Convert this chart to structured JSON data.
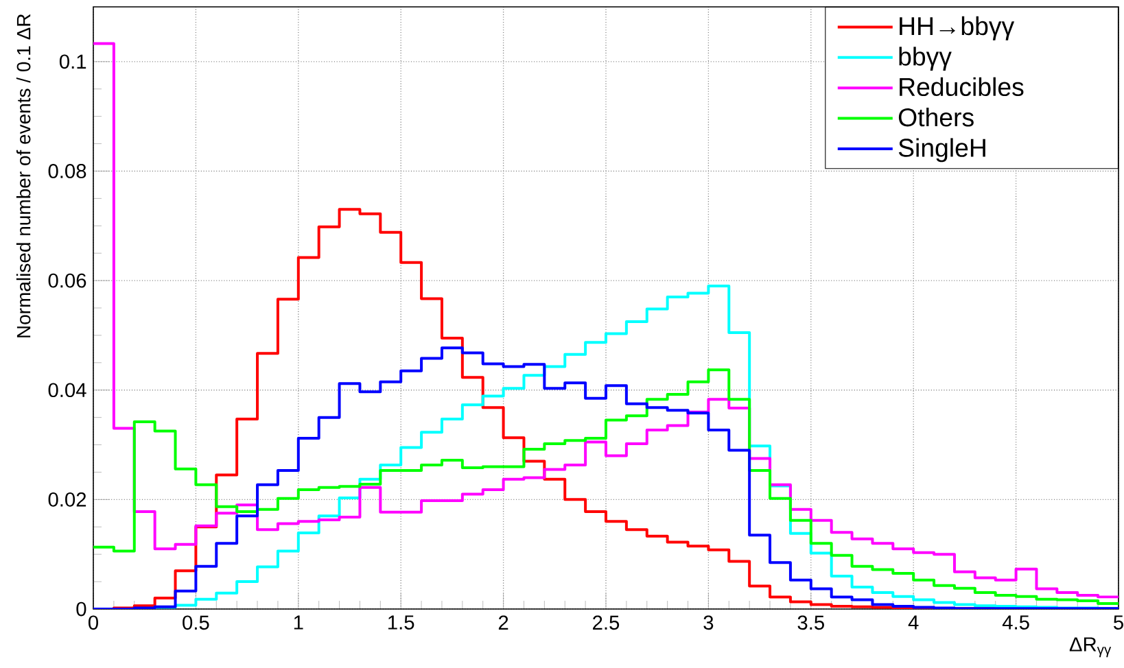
{
  "chart_data": {
    "type": "histogram",
    "xlabel": "ΔR$_{γγ}$",
    "ylabel": "Normalised number of events / 0.1 ΔR",
    "bins": [
      0,
      0.1,
      0.2,
      0.3,
      0.4,
      0.5,
      0.6,
      0.7,
      0.8,
      0.9,
      1.0,
      1.1,
      1.2,
      1.3,
      1.4,
      1.5,
      1.6,
      1.7,
      1.8,
      1.9,
      2.0,
      2.1,
      2.2,
      2.3,
      2.4,
      2.5,
      2.6,
      2.7,
      2.8,
      2.9,
      3.0,
      3.1,
      3.2,
      3.3,
      3.4,
      3.5,
      3.6,
      3.7,
      3.8,
      3.9,
      4.0,
      4.1,
      4.2,
      4.3,
      4.4,
      4.5,
      4.6,
      4.7,
      4.8,
      4.9,
      5.0
    ],
    "series": [
      {
        "name": "HH→bbγγ",
        "color": "#ff0000",
        "values": [
          0,
          0.0002,
          0.0006,
          0.002,
          0.007,
          0.015,
          0.0245,
          0.0347,
          0.0467,
          0.0566,
          0.0642,
          0.0698,
          0.073,
          0.0722,
          0.0688,
          0.0633,
          0.0567,
          0.0495,
          0.0423,
          0.0368,
          0.0313,
          0.027,
          0.0237,
          0.02,
          0.0178,
          0.016,
          0.0145,
          0.0133,
          0.0122,
          0.0115,
          0.0108,
          0.0087,
          0.0042,
          0.0022,
          0.0013,
          0.0008,
          0.0005,
          0.0004,
          0.0003,
          0.0002,
          0.0001,
          0.0001,
          0.0001,
          0.0001,
          0.0001,
          0.0001,
          0.0001,
          0.0001,
          0.0001,
          0.0001
        ]
      },
      {
        "name": "bbγγ",
        "color": "#00ffff",
        "values": [
          0,
          0,
          0,
          0.0003,
          0.0007,
          0.0018,
          0.0029,
          0.005,
          0.0077,
          0.0106,
          0.0139,
          0.017,
          0.0203,
          0.0237,
          0.0263,
          0.0295,
          0.0323,
          0.0347,
          0.0373,
          0.0389,
          0.0403,
          0.0427,
          0.0443,
          0.0465,
          0.0487,
          0.0503,
          0.0525,
          0.0548,
          0.057,
          0.0577,
          0.059,
          0.0505,
          0.0298,
          0.0225,
          0.0138,
          0.0102,
          0.006,
          0.004,
          0.003,
          0.0023,
          0.0017,
          0.0012,
          0.0008,
          0.0006,
          0.0005,
          0.0004,
          0.0003,
          0.0002,
          0.0002,
          0.0001
        ]
      },
      {
        "name": "Reducibles",
        "color": "#ff00ff",
        "values": [
          0.1033,
          0.033,
          0.0178,
          0.011,
          0.0118,
          0.0152,
          0.0175,
          0.019,
          0.0145,
          0.0156,
          0.016,
          0.0163,
          0.0168,
          0.0222,
          0.0177,
          0.0177,
          0.0198,
          0.0198,
          0.021,
          0.0218,
          0.0237,
          0.024,
          0.0255,
          0.0263,
          0.0305,
          0.028,
          0.0302,
          0.0327,
          0.0335,
          0.036,
          0.0383,
          0.0367,
          0.0275,
          0.0227,
          0.0182,
          0.0162,
          0.014,
          0.0128,
          0.012,
          0.011,
          0.0103,
          0.01,
          0.0068,
          0.0057,
          0.0053,
          0.0073,
          0.0037,
          0.003,
          0.0025,
          0.0022
        ]
      },
      {
        "name": "Others",
        "color": "#00ff00",
        "values": [
          0.0113,
          0.0106,
          0.0342,
          0.0325,
          0.0256,
          0.0227,
          0.0187,
          0.0178,
          0.0182,
          0.0202,
          0.0218,
          0.0222,
          0.0224,
          0.0228,
          0.0253,
          0.0253,
          0.0263,
          0.0272,
          0.0258,
          0.026,
          0.026,
          0.0292,
          0.0302,
          0.0308,
          0.0312,
          0.0345,
          0.0353,
          0.0383,
          0.0392,
          0.0415,
          0.0437,
          0.0383,
          0.0253,
          0.0202,
          0.0162,
          0.012,
          0.0098,
          0.0078,
          0.0072,
          0.0065,
          0.0053,
          0.0043,
          0.0038,
          0.003,
          0.0025,
          0.0023,
          0.0018,
          0.0017,
          0.0015,
          0.001
        ]
      },
      {
        "name": "SingleH",
        "color": "#0000ff",
        "values": [
          0,
          0,
          0.0002,
          0.0004,
          0.0033,
          0.0078,
          0.012,
          0.017,
          0.0227,
          0.0253,
          0.0312,
          0.035,
          0.0412,
          0.0397,
          0.0415,
          0.0435,
          0.0458,
          0.0477,
          0.0468,
          0.0448,
          0.0443,
          0.0447,
          0.0403,
          0.0413,
          0.0385,
          0.0408,
          0.0375,
          0.0368,
          0.0363,
          0.0358,
          0.0327,
          0.029,
          0.0135,
          0.0085,
          0.0053,
          0.0037,
          0.0022,
          0.0017,
          0.0008,
          0.0005,
          0.0003,
          0.0002,
          0.0001,
          0.0001,
          0.0001,
          0.0001,
          0.0001,
          0.0001,
          0.0001,
          0.0001
        ]
      }
    ],
    "xlim": [
      0,
      5
    ],
    "ylim": [
      0,
      0.11
    ],
    "xticks": [
      0,
      0.5,
      1,
      1.5,
      2,
      2.5,
      3,
      3.5,
      4,
      4.5,
      5
    ],
    "yticks": [
      0,
      0.02,
      0.04,
      0.06,
      0.08,
      0.1
    ],
    "grid": true,
    "legend": "top right"
  }
}
